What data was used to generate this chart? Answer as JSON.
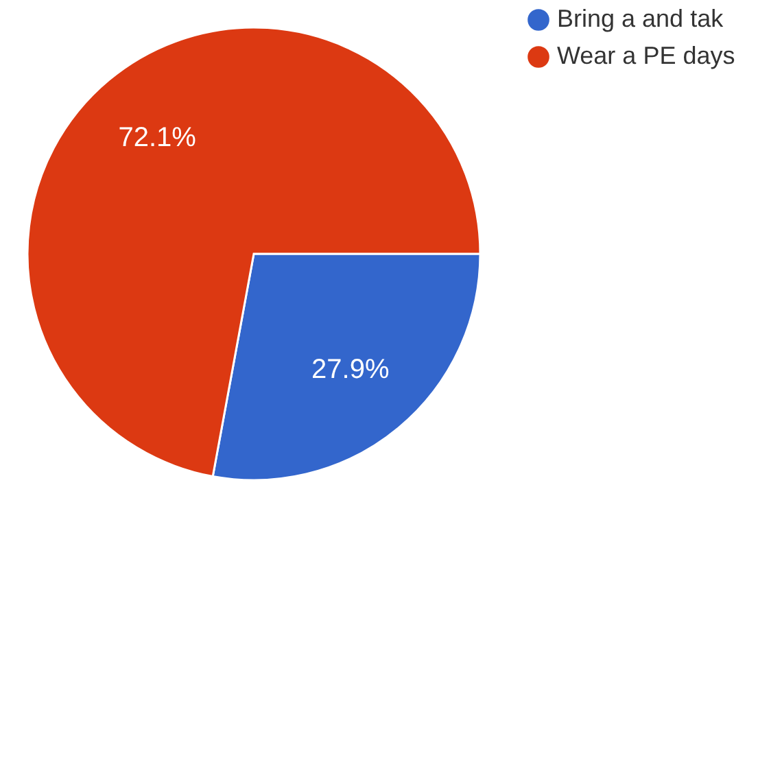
{
  "chart_data": {
    "type": "pie",
    "categories": [
      "Bring a and tak",
      "Wear a PE days"
    ],
    "values": [
      27.9,
      72.1
    ],
    "colors": [
      "#3366cc",
      "#dc3912"
    ],
    "value_labels": [
      "27.9%",
      "72.1%"
    ],
    "legend": "right"
  }
}
